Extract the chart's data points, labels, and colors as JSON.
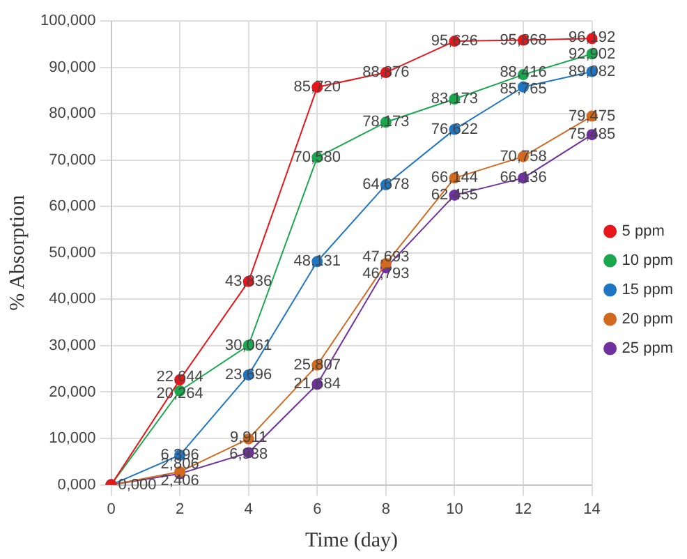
{
  "chart_data": {
    "type": "line",
    "xlabel": "Time (day)",
    "ylabel": "% Absorption",
    "categories": [
      "0",
      "2",
      "4",
      "6",
      "8",
      "10",
      "12",
      "14"
    ],
    "series": [
      {
        "name": "5 ppm",
        "color": "#e8161b",
        "values": [
          0,
          22.644,
          43.836,
          85.72,
          88.876,
          95.626,
          95.868,
          96.192
        ],
        "value_labels": [
          "0,000",
          "22,644",
          "43,836",
          "85,720",
          "88,876",
          "95,626",
          "95,868",
          "96,192"
        ]
      },
      {
        "name": "10 ppm",
        "color": "#1aa84f",
        "values": [
          0,
          20.264,
          30.061,
          70.58,
          78.173,
          83.173,
          88.416,
          92.902
        ],
        "value_labels": [
          null,
          "20,264",
          "30,061",
          "70,580",
          "78,173",
          "83,173",
          "88,416",
          "92,902"
        ]
      },
      {
        "name": "15 ppm",
        "color": "#1f77c4",
        "values": [
          0,
          6.396,
          23.696,
          48.131,
          64.678,
          76.622,
          85.765,
          89.082
        ],
        "value_labels": [
          null,
          "6,396",
          "23,696",
          "48,131",
          "64,678",
          "76,622",
          "85,765",
          "89,082"
        ]
      },
      {
        "name": "20 ppm",
        "color": "#d2691e",
        "values": [
          0,
          2.806,
          9.911,
          25.807,
          47.693,
          66.144,
          70.758,
          79.475
        ],
        "value_labels": [
          null,
          "2,806",
          "9,911",
          "25,807",
          "47,693",
          "66,144",
          "70,758",
          "79,475"
        ]
      },
      {
        "name": "25 ppm",
        "color": "#7030a0",
        "values": [
          0,
          2.406,
          6.938,
          21.684,
          46.793,
          62.455,
          66.136,
          75.485
        ],
        "value_labels": [
          null,
          "2,406",
          "6,938",
          "21,684",
          "46,793",
          "62,455",
          "66,136",
          "75,485"
        ]
      }
    ],
    "ylim": [
      0,
      100
    ],
    "yticks": [
      {
        "value": 0,
        "label": "0,000"
      },
      {
        "value": 10,
        "label": "10,000"
      },
      {
        "value": 20,
        "label": "20,000"
      },
      {
        "value": 30,
        "label": "30,000"
      },
      {
        "value": 40,
        "label": "40,000"
      },
      {
        "value": 50,
        "label": "50,000"
      },
      {
        "value": 60,
        "label": "60,000"
      },
      {
        "value": 70,
        "label": "70,000"
      },
      {
        "value": 80,
        "label": "80,000"
      },
      {
        "value": 90,
        "label": "90,000"
      },
      {
        "value": 100,
        "label": "100,000"
      }
    ],
    "grid": true,
    "legend": "right",
    "marker": "circle",
    "line_style": "solid"
  }
}
